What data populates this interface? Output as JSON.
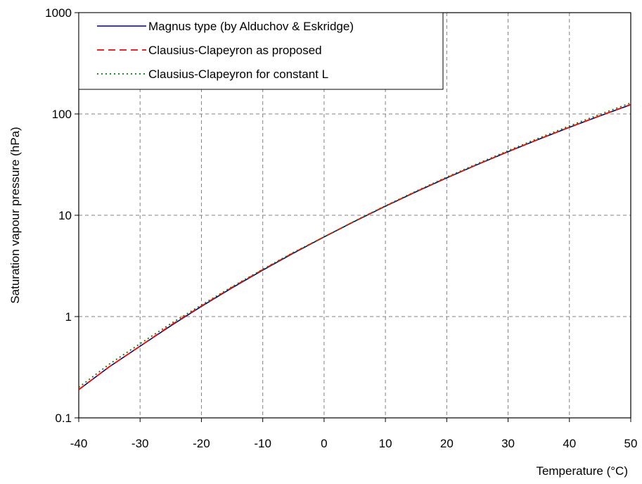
{
  "chart_data": {
    "type": "line",
    "title": "",
    "xlabel": "Temperature (°C)",
    "ylabel": "Saturation vapour pressure (hPa)",
    "xlim": [
      -40,
      50
    ],
    "ylim": [
      0.1,
      1000
    ],
    "yscale": "log",
    "grid": true,
    "legend_position": "top-left",
    "x_ticks": [
      "-40",
      "-30",
      "-20",
      "-10",
      "0",
      "10",
      "20",
      "30",
      "40",
      "50"
    ],
    "y_ticks": [
      "0.1",
      "1",
      "10",
      "100",
      "1000"
    ],
    "x": [
      -40,
      -35,
      -30,
      -25,
      -20,
      -15,
      -10,
      -5,
      0,
      5,
      10,
      15,
      20,
      25,
      30,
      35,
      40,
      45,
      50
    ],
    "series": [
      {
        "name": "Magnus type (by Alduchov & Eskridge)",
        "color": "#000080",
        "dash": "solid",
        "values": [
          0.19,
          0.32,
          0.51,
          0.81,
          1.26,
          1.92,
          2.87,
          4.22,
          6.11,
          8.72,
          12.28,
          17.05,
          23.37,
          31.66,
          42.4,
          56.2,
          73.8,
          95.9,
          123.4
        ]
      },
      {
        "name": "Clausius-Clapeyron as proposed",
        "color": "#ff0000",
        "dash": "dashed",
        "values": [
          0.19,
          0.32,
          0.51,
          0.82,
          1.27,
          1.94,
          2.9,
          4.26,
          6.11,
          8.74,
          12.32,
          17.1,
          23.45,
          31.74,
          42.5,
          56.3,
          73.9,
          96.0,
          124.0
        ]
      },
      {
        "name": "Clausius-Clapeyron for constant L",
        "color": "#008000",
        "dash": "dotted",
        "values": [
          0.2,
          0.34,
          0.54,
          0.85,
          1.3,
          1.97,
          2.93,
          4.3,
          6.11,
          8.78,
          12.4,
          17.3,
          23.8,
          32.3,
          43.4,
          57.8,
          76.1,
          99.3,
          128.4
        ]
      }
    ]
  }
}
